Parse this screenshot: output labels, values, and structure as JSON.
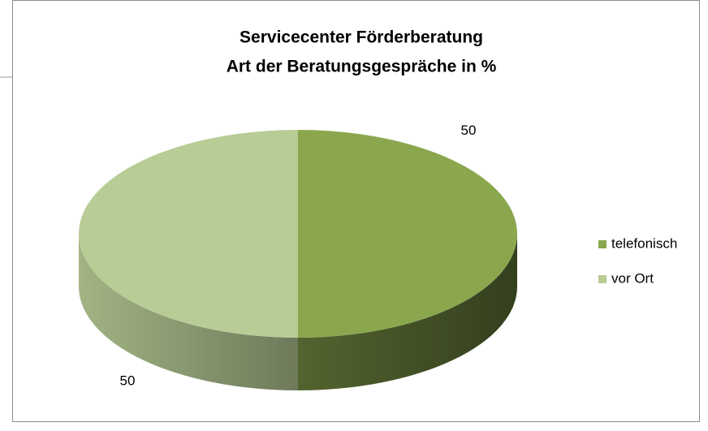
{
  "chart_data": {
    "type": "pie3d",
    "title": [
      "Servicecenter Förderberatung",
      "Art der Beratungsgespräche in %"
    ],
    "categories": [
      "telefonisch",
      "vor Ort"
    ],
    "values": [
      50,
      50
    ],
    "colors": [
      "#8aa74e",
      "#b8cc96"
    ],
    "legend": "right"
  }
}
